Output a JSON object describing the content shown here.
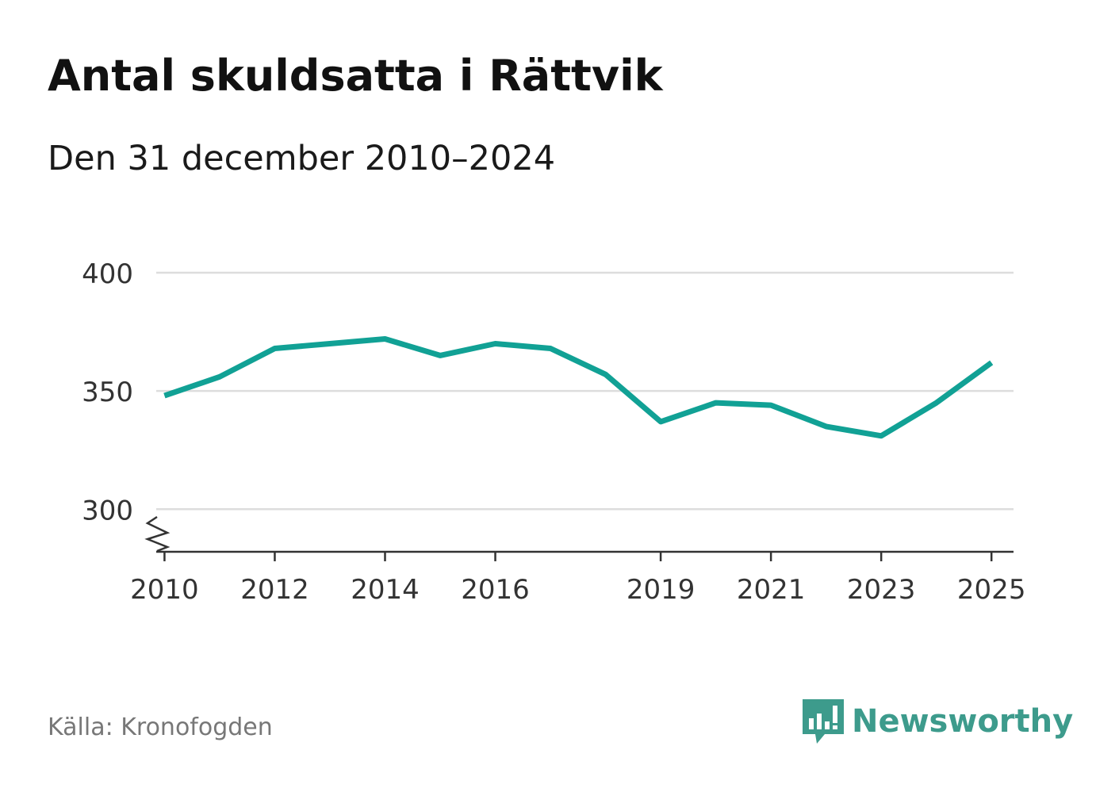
{
  "title": "Antal skuldsatta i Rättvik",
  "subtitle": "Den 31 december 2010–2024",
  "source": "Källa: Kronofogden",
  "logo": {
    "text": "Newsworthy",
    "icon": "bar-chart-speech-bubble-icon"
  },
  "colors": {
    "line": "#11a195",
    "grid": "#dddddd",
    "axis": "#333333",
    "brand": "#3d9b8c"
  },
  "chart_data": {
    "type": "line",
    "title": "Antal skuldsatta i Rättvik",
    "xlabel": "",
    "ylabel": "",
    "xlim": [
      2009.85,
      2025.4
    ],
    "ylim": [
      282,
      400
    ],
    "axis_break": true,
    "grid": true,
    "y_ticks": [
      300,
      350,
      400
    ],
    "y_tick_labels": [
      "300",
      "350",
      "400"
    ],
    "x_ticks": [
      2010,
      2012,
      2014,
      2016,
      2019,
      2021,
      2023,
      2025
    ],
    "x_tick_labels": [
      "2010",
      "2012",
      "2014",
      "2016",
      "2019",
      "2021",
      "2023",
      "2025"
    ],
    "series": [
      {
        "name": "Antal skuldsatta",
        "x": [
          2010,
          2011,
          2012,
          2013,
          2014,
          2015,
          2016,
          2017,
          2018,
          2019,
          2020,
          2021,
          2022,
          2023,
          2024,
          2025
        ],
        "values": [
          348,
          356,
          368,
          370,
          372,
          365,
          370,
          368,
          357,
          337,
          345,
          344,
          335,
          331,
          345,
          362
        ]
      }
    ]
  }
}
